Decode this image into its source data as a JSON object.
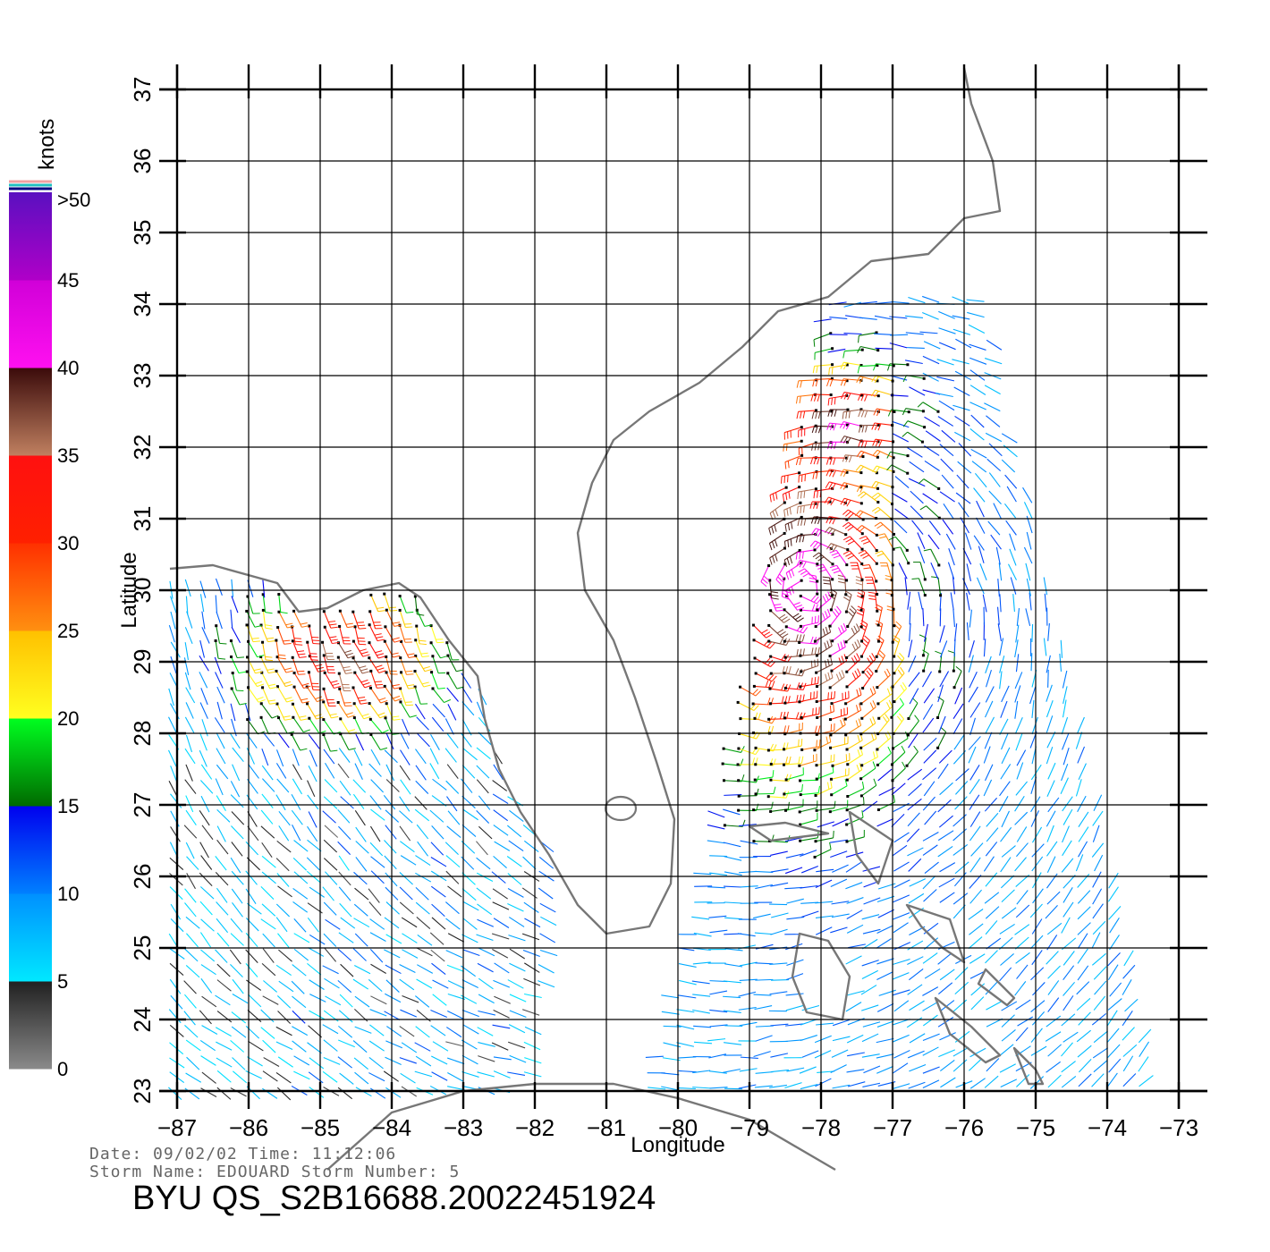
{
  "colorbar": {
    "units": "knots",
    "labels": [
      ">50",
      "45",
      "40",
      "35",
      "30",
      "25",
      "20",
      "15",
      "10",
      "5",
      "0"
    ],
    "segments": [
      {
        "from": 0,
        "to": 5,
        "colors": [
          "#8a8a8a",
          "#202020"
        ]
      },
      {
        "from": 5,
        "to": 10,
        "colors": [
          "#00e8ff",
          "#0090ff"
        ]
      },
      {
        "from": 10,
        "to": 15,
        "colors": [
          "#0080ff",
          "#0000ee"
        ]
      },
      {
        "from": 15,
        "to": 20,
        "colors": [
          "#006a00",
          "#00ff20"
        ]
      },
      {
        "from": 20,
        "to": 25,
        "colors": [
          "#ffff20",
          "#ffc000"
        ]
      },
      {
        "from": 25,
        "to": 30,
        "colors": [
          "#ff9010",
          "#ff3000"
        ]
      },
      {
        "from": 30,
        "to": 35,
        "colors": [
          "#ff2000",
          "#ff1010"
        ]
      },
      {
        "from": 35,
        "to": 40,
        "colors": [
          "#c08060",
          "#3a0a0a"
        ]
      },
      {
        "from": 40,
        "to": 45,
        "colors": [
          "#ff10f0",
          "#d000d8"
        ]
      },
      {
        "from": 45,
        "to": 50,
        "colors": [
          "#b000c8",
          "#5a10c0"
        ]
      }
    ]
  },
  "axes": {
    "xlabel": "Longitude",
    "ylabel": "Latitude",
    "lon_range": [
      -87,
      -73
    ],
    "lat_range": [
      23,
      37
    ],
    "lon_ticks": [
      "−87",
      "−86",
      "−85",
      "−84",
      "−83",
      "−82",
      "−81",
      "−80",
      "−79",
      "−78",
      "−77",
      "−76",
      "−75",
      "−74",
      "−73"
    ],
    "lat_ticks": [
      "23",
      "24",
      "25",
      "26",
      "27",
      "28",
      "29",
      "30",
      "31",
      "32",
      "33",
      "34",
      "35",
      "36",
      "37"
    ],
    "grid": true
  },
  "map": {
    "coast_color": "#777777",
    "regions": [
      "Florida peninsula",
      "Georgia / Carolina coast",
      "Florida panhandle",
      "Bahamas",
      "Cuba"
    ]
  },
  "wind_field": {
    "type": "wind barbs",
    "storm_center_approx": {
      "lon": -78.2,
      "lat": 30.0
    },
    "max_speed_knots": 35
  },
  "info": {
    "date_line": "Date: 09/02/02   Time: 11:12:06",
    "storm_line": "Storm Name: EDOUARD   Storm Number: 5",
    "file_id": "BYU QS_S2B16688.20022451924"
  }
}
